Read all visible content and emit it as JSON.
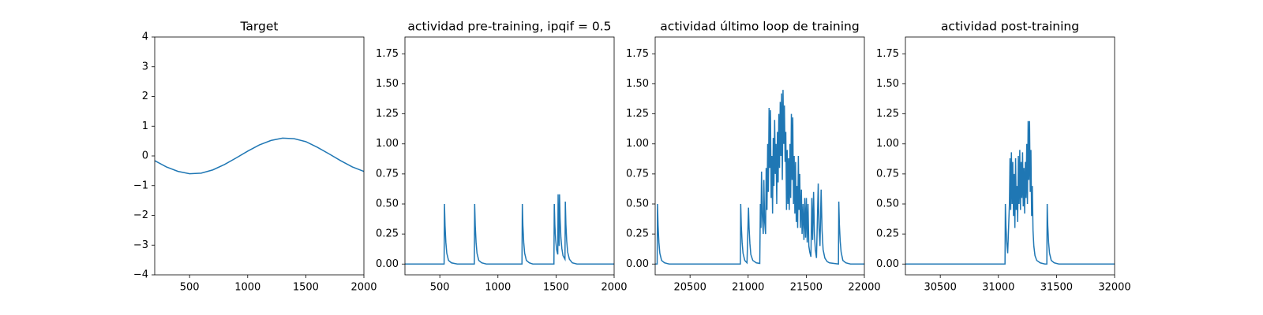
{
  "chart_data": [
    {
      "type": "line",
      "title": "Target",
      "color": "#1f77b4",
      "x": [
        200,
        300,
        400,
        500,
        600,
        700,
        800,
        900,
        1000,
        1100,
        1200,
        1300,
        1400,
        1500,
        1600,
        1700,
        1800,
        1900,
        2000
      ],
      "values": [
        -0.16,
        -0.37,
        -0.52,
        -0.6,
        -0.58,
        -0.47,
        -0.29,
        -0.07,
        0.16,
        0.37,
        0.52,
        0.6,
        0.58,
        0.48,
        0.29,
        0.07,
        -0.16,
        -0.37,
        -0.52
      ],
      "xlim": [
        200,
        2000
      ],
      "xticks": [
        500,
        1000,
        1500,
        2000
      ],
      "ylim": [
        -4,
        4
      ],
      "yticks": [
        {
          "value": -4,
          "label": "−4"
        },
        {
          "value": -3,
          "label": "−3"
        },
        {
          "value": -2,
          "label": "−2"
        },
        {
          "value": -1,
          "label": "−1"
        },
        0,
        1,
        2,
        3,
        4
      ]
    },
    {
      "type": "line",
      "title": "actividad pre-training, ipqif = 0.5",
      "color": "#1f77b4",
      "x": [
        200,
        537,
        540,
        545,
        552,
        560,
        575,
        600,
        650,
        797,
        800,
        805,
        812,
        820,
        835,
        860,
        900,
        1207,
        1210,
        1215,
        1222,
        1230,
        1245,
        1270,
        1300,
        1482,
        1485,
        1490,
        1497,
        1505,
        1515,
        1518,
        1522,
        1527,
        1530,
        1535,
        1542,
        1550,
        1560,
        1577,
        1580,
        1585,
        1592,
        1600,
        1615,
        1640,
        1680,
        2000
      ],
      "values": [
        0,
        0,
        0.5,
        0.32,
        0.18,
        0.09,
        0.03,
        0.01,
        0,
        0,
        0.5,
        0.32,
        0.18,
        0.09,
        0.03,
        0.01,
        0,
        0,
        0.5,
        0.32,
        0.18,
        0.09,
        0.03,
        0.01,
        0,
        0,
        0.5,
        0.32,
        0.2,
        0.12,
        0.08,
        0.58,
        0.3,
        0.15,
        0.58,
        0.38,
        0.22,
        0.13,
        0.07,
        0.04,
        0.52,
        0.33,
        0.19,
        0.1,
        0.04,
        0.01,
        0,
        0
      ],
      "xlim": [
        200,
        2000
      ],
      "xticks": [
        500,
        1000,
        1500,
        2000
      ],
      "ylim": [
        -0.09,
        1.89
      ],
      "yticks": [
        {
          "value": 0,
          "label": "0.00"
        },
        {
          "value": 0.25,
          "label": "0.25"
        },
        {
          "value": 0.5,
          "label": "0.50"
        },
        {
          "value": 0.75,
          "label": "0.75"
        },
        {
          "value": 1,
          "label": "1.00"
        },
        {
          "value": 1.25,
          "label": "1.25"
        },
        {
          "value": 1.5,
          "label": "1.50"
        },
        {
          "value": 1.75,
          "label": "1.75"
        }
      ]
    },
    {
      "type": "line",
      "title": "actividad último loop de training",
      "color": "#1f77b4",
      "x": [
        20200,
        20217,
        20220,
        20225,
        20232,
        20240,
        20255,
        20280,
        20320,
        20933,
        20936,
        20941,
        20948,
        20956,
        20971,
        20990,
        21003,
        21008,
        21015,
        21023,
        21040,
        21070,
        21100,
        21105,
        21110,
        21115,
        21122,
        21130,
        21135,
        21142,
        21150,
        21155,
        21162,
        21168,
        21174,
        21180,
        21186,
        21192,
        21198,
        21204,
        21210,
        21216,
        21222,
        21228,
        21234,
        21240,
        21246,
        21252,
        21258,
        21264,
        21270,
        21276,
        21282,
        21288,
        21294,
        21300,
        21306,
        21312,
        21318,
        21324,
        21330,
        21336,
        21342,
        21348,
        21354,
        21360,
        21366,
        21372,
        21378,
        21384,
        21390,
        21396,
        21402,
        21408,
        21414,
        21420,
        21426,
        21432,
        21438,
        21444,
        21450,
        21458,
        21464,
        21472,
        21480,
        21487,
        21494,
        21501,
        21508,
        21515,
        21522,
        21530,
        21540,
        21548,
        21555,
        21563,
        21570,
        21578,
        21588,
        21603,
        21610,
        21618,
        21628,
        21636,
        21645,
        21660,
        21680,
        21700,
        21777,
        21780,
        21785,
        21792,
        21800,
        21815,
        21840,
        21880,
        22000
      ],
      "values": [
        0,
        0,
        0.5,
        0.32,
        0.18,
        0.09,
        0.03,
        0.01,
        0,
        0,
        0.5,
        0.32,
        0.18,
        0.09,
        0.03,
        0.01,
        0.47,
        0.3,
        0.17,
        0.08,
        0.03,
        0.01,
        0.005,
        0.5,
        0.3,
        0.77,
        0.4,
        0.25,
        0.7,
        0.35,
        0.25,
        0.8,
        0.45,
        1.0,
        0.6,
        1.3,
        0.8,
        1.28,
        0.55,
        0.9,
        0.42,
        1.05,
        0.65,
        1.2,
        0.75,
        1.0,
        0.5,
        1.1,
        0.68,
        1.25,
        0.8,
        1.35,
        0.9,
        1.42,
        0.7,
        1.45,
        1.0,
        1.32,
        0.85,
        1.1,
        0.45,
        0.95,
        0.5,
        0.88,
        0.45,
        1.0,
        0.55,
        1.25,
        0.7,
        1.22,
        0.5,
        0.9,
        0.42,
        0.85,
        0.35,
        0.65,
        0.3,
        0.9,
        0.45,
        0.75,
        0.3,
        0.62,
        0.25,
        0.5,
        0.2,
        0.55,
        0.22,
        0.55,
        0.18,
        0.5,
        0.15,
        0.1,
        0.06,
        0.55,
        0.2,
        0.6,
        0.25,
        0.12,
        0.05,
        0.67,
        0.3,
        0.15,
        0.62,
        0.28,
        0.12,
        0.05,
        0.02,
        0.01,
        0,
        0.52,
        0.33,
        0.19,
        0.1,
        0.03,
        0.01,
        0,
        0
      ],
      "xlim": [
        20200,
        22000
      ],
      "xticks": [
        20500,
        21000,
        21500,
        22000
      ],
      "ylim": [
        -0.09,
        1.89
      ],
      "yticks": [
        {
          "value": 0,
          "label": "0.00"
        },
        {
          "value": 0.25,
          "label": "0.25"
        },
        {
          "value": 0.5,
          "label": "0.50"
        },
        {
          "value": 0.75,
          "label": "0.75"
        },
        {
          "value": 1,
          "label": "1.00"
        },
        {
          "value": 1.25,
          "label": "1.25"
        },
        {
          "value": 1.5,
          "label": "1.50"
        },
        {
          "value": 1.75,
          "label": "1.75"
        }
      ]
    },
    {
      "type": "line",
      "title": "actividad post-training",
      "color": "#1f77b4",
      "x": [
        30200,
        31057,
        31060,
        31065,
        31072,
        31080,
        31095,
        31100,
        31106,
        31112,
        31118,
        31124,
        31130,
        31136,
        31142,
        31148,
        31154,
        31160,
        31166,
        31172,
        31178,
        31184,
        31190,
        31196,
        31202,
        31208,
        31214,
        31220,
        31226,
        31232,
        31238,
        31244,
        31250,
        31256,
        31262,
        31268,
        31274,
        31280,
        31286,
        31292,
        31298,
        31305,
        31315,
        31330,
        31360,
        31400,
        31417,
        31420,
        31425,
        31432,
        31440,
        31455,
        31480,
        31520,
        32000
      ],
      "values": [
        0,
        0,
        0.5,
        0.32,
        0.18,
        0.09,
        0.5,
        0.88,
        0.45,
        0.93,
        0.5,
        0.85,
        0.4,
        0.75,
        0.3,
        0.88,
        0.45,
        0.65,
        0.35,
        0.9,
        0.5,
        0.95,
        0.45,
        0.85,
        0.55,
        0.93,
        0.48,
        0.8,
        0.42,
        0.85,
        0.55,
        1.0,
        0.5,
        1.19,
        0.7,
        1.19,
        0.6,
        0.95,
        0.4,
        0.65,
        0.28,
        0.15,
        0.07,
        0.03,
        0.01,
        0,
        0,
        0.5,
        0.32,
        0.18,
        0.09,
        0.03,
        0.01,
        0,
        0
      ],
      "xlim": [
        30200,
        32000
      ],
      "xticks": [
        30500,
        31000,
        31500,
        32000
      ],
      "ylim": [
        -0.09,
        1.89
      ],
      "yticks": [
        {
          "value": 0,
          "label": "0.00"
        },
        {
          "value": 0.25,
          "label": "0.25"
        },
        {
          "value": 0.5,
          "label": "0.50"
        },
        {
          "value": 0.75,
          "label": "0.75"
        },
        {
          "value": 1,
          "label": "1.00"
        },
        {
          "value": 1.25,
          "label": "1.25"
        },
        {
          "value": 1.5,
          "label": "1.50"
        },
        {
          "value": 1.75,
          "label": "1.75"
        }
      ]
    }
  ]
}
